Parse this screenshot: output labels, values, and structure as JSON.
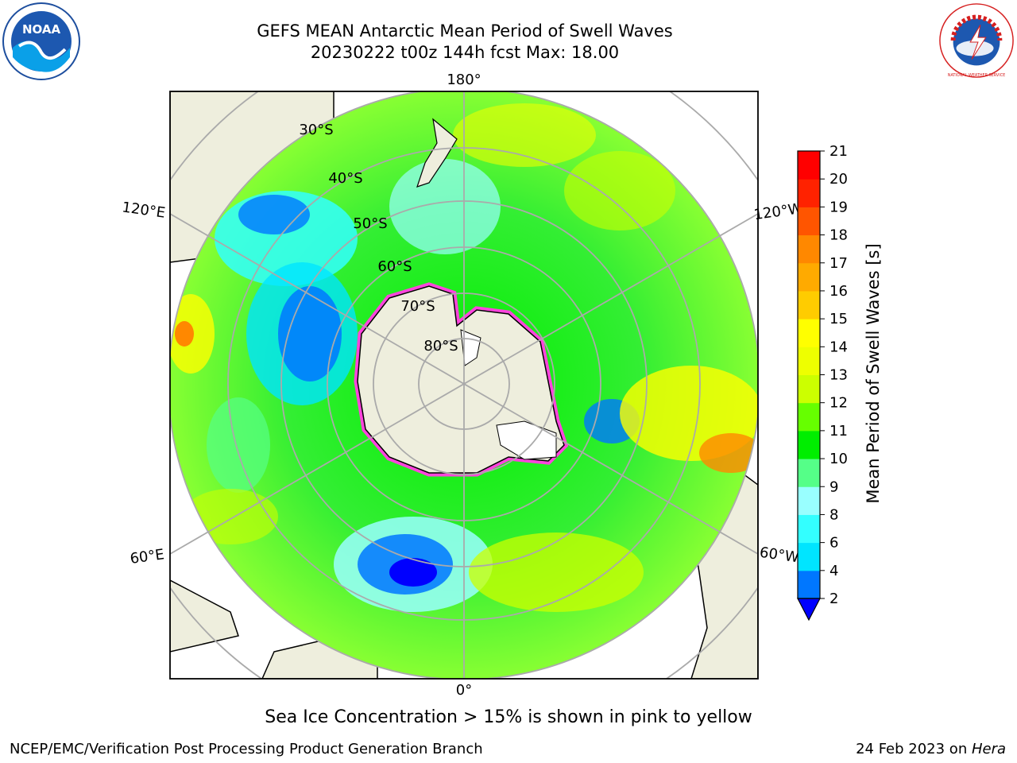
{
  "header": {
    "title_line1": "GEFS MEAN Antarctic Mean Period of Swell Waves",
    "title_line2": "20230222 t00z 144h fcst   Max: 18.00"
  },
  "logos": {
    "left": "NOAA",
    "right": "NATIONAL WEATHER SERVICE"
  },
  "map": {
    "longitude_labels": [
      "180°",
      "120°E",
      "120°W",
      "60°E",
      "60°W",
      "0°"
    ],
    "latitude_labels": [
      "30°S",
      "40°S",
      "50°S",
      "60°S",
      "70°S",
      "80°S"
    ]
  },
  "colorbar": {
    "label": "Mean Period of Swell Waves [s]",
    "ticks": [
      "2",
      "4",
      "6",
      "8",
      "9",
      "10",
      "11",
      "12",
      "13",
      "14",
      "15",
      "16",
      "17",
      "18",
      "19",
      "20",
      "21"
    ],
    "colors": [
      "#0000ff",
      "#0077ff",
      "#00e5ff",
      "#33ffff",
      "#99ffff",
      "#55ff88",
      "#00ee00",
      "#66ff00",
      "#ccff00",
      "#eeff00",
      "#ffff00",
      "#ffcc00",
      "#ffaa00",
      "#ff8800",
      "#ff5500",
      "#ff2200",
      "#ff0000"
    ]
  },
  "caption": "Sea Ice Concentration > 15% is shown in pink to yellow",
  "footer": {
    "left": "NCEP/EMC/Verification Post Processing Product Generation Branch",
    "right_date": "24 Feb 2023 on ",
    "right_host": "Hera"
  }
}
